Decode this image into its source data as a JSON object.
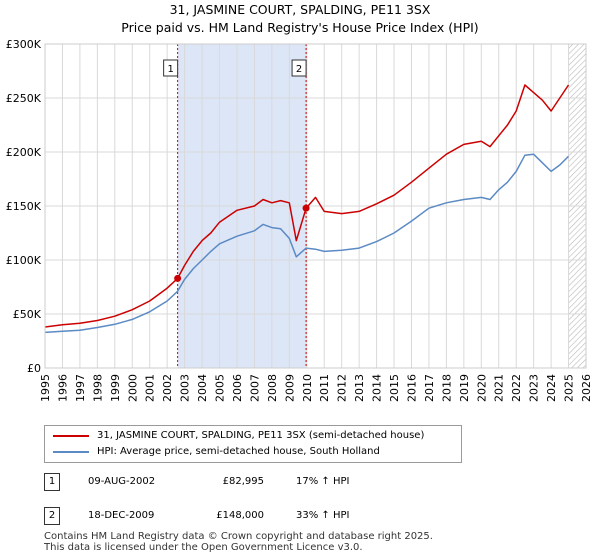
{
  "title": "31, JASMINE COURT, SPALDING, PE11 3SX",
  "subtitle": "Price paid vs. HM Land Registry's House Price Index (HPI)",
  "colors": {
    "property": "#cc0000",
    "hpi": "#5b8ac4",
    "shade": "#dde6f7",
    "hatch": "#b8b8b8"
  },
  "chart_data": {
    "type": "line",
    "title": "31, JASMINE COURT, SPALDING, PE11 3SX",
    "subtitle": "Price paid vs. HM Land Registry's House Price Index (HPI)",
    "xlabel": "",
    "ylabel": "",
    "xlim": [
      1995,
      2026
    ],
    "ylim": [
      0,
      300000
    ],
    "x_ticks": [
      "1995",
      "1996",
      "1997",
      "1998",
      "1999",
      "2000",
      "2001",
      "2002",
      "2003",
      "2004",
      "2005",
      "2006",
      "2007",
      "2008",
      "2009",
      "2010",
      "2011",
      "2012",
      "2013",
      "2014",
      "2015",
      "2016",
      "2017",
      "2018",
      "2019",
      "2020",
      "2021",
      "2022",
      "2023",
      "2024",
      "2025",
      "2026"
    ],
    "y_ticks": [
      {
        "value": 0,
        "label": "£0"
      },
      {
        "value": 50000,
        "label": "£50K"
      },
      {
        "value": 100000,
        "label": "£100K"
      },
      {
        "value": 150000,
        "label": "£150K"
      },
      {
        "value": 200000,
        "label": "£200K"
      },
      {
        "value": 250000,
        "label": "£250K"
      },
      {
        "value": 300000,
        "label": "£300K"
      }
    ],
    "grid": true,
    "shaded_period": {
      "from": 2002.6,
      "to": 2009.96
    },
    "future_hatch_from": 2025.0,
    "series": [
      {
        "name": "31, JASMINE COURT, SPALDING, PE11 3SX (semi-detached house)",
        "color": "#cc0000",
        "x": [
          1995.0,
          1996.0,
          1997.0,
          1998.0,
          1999.0,
          2000.0,
          2001.0,
          2001.5,
          2002.0,
          2002.6,
          2003.0,
          2003.5,
          2004.0,
          2004.5,
          2005.0,
          2006.0,
          2007.0,
          2007.5,
          2008.0,
          2008.5,
          2009.0,
          2009.4,
          2009.96,
          2010.5,
          2011.0,
          2012.0,
          2013.0,
          2014.0,
          2015.0,
          2016.0,
          2017.0,
          2018.0,
          2019.0,
          2020.0,
          2020.5,
          2021.0,
          2021.5,
          2022.0,
          2022.5,
          2023.0,
          2023.5,
          2024.0,
          2024.5,
          2025.0
        ],
        "values": [
          38000,
          40000,
          41500,
          44000,
          48000,
          54000,
          62000,
          68000,
          74000,
          82995,
          95000,
          108000,
          118000,
          125000,
          135000,
          146000,
          150000,
          156000,
          153000,
          155000,
          153000,
          118000,
          148000,
          158000,
          145000,
          143000,
          145000,
          152000,
          160000,
          172000,
          185000,
          198000,
          207000,
          210000,
          205000,
          215000,
          225000,
          238000,
          262000,
          255000,
          248000,
          238000,
          250000,
          262000
        ]
      },
      {
        "name": "HPI: Average price, semi-detached house, South Holland",
        "color": "#5b8ac4",
        "x": [
          1995.0,
          1996.0,
          1997.0,
          1998.0,
          1999.0,
          2000.0,
          2001.0,
          2001.5,
          2002.0,
          2002.6,
          2003.0,
          2003.5,
          2004.0,
          2004.5,
          2005.0,
          2006.0,
          2007.0,
          2007.5,
          2008.0,
          2008.5,
          2009.0,
          2009.4,
          2009.96,
          2010.5,
          2011.0,
          2012.0,
          2013.0,
          2014.0,
          2015.0,
          2016.0,
          2017.0,
          2018.0,
          2019.0,
          2020.0,
          2020.5,
          2021.0,
          2021.5,
          2022.0,
          2022.5,
          2023.0,
          2023.5,
          2024.0,
          2024.5,
          2025.0
        ],
        "values": [
          33000,
          34000,
          35000,
          37500,
          40500,
          45000,
          52000,
          57000,
          62000,
          71000,
          82000,
          92000,
          100000,
          108000,
          115000,
          122000,
          127000,
          133000,
          130000,
          129000,
          120000,
          103000,
          111000,
          110000,
          108000,
          109000,
          111000,
          117000,
          125000,
          136000,
          148000,
          153000,
          156000,
          158000,
          156000,
          165000,
          172000,
          182000,
          197000,
          198000,
          190000,
          182000,
          188000,
          196000
        ]
      }
    ],
    "markers": [
      {
        "label": "1",
        "x": 2002.6,
        "value": 82995
      },
      {
        "label": "2",
        "x": 2009.96,
        "value": 148000
      }
    ],
    "legend": "bottom"
  },
  "legend": {
    "property_label": "31, JASMINE COURT, SPALDING, PE11 3SX (semi-detached house)",
    "hpi_label": "HPI: Average price, semi-detached house, South Holland"
  },
  "transactions": [
    {
      "num": "1",
      "date": "09-AUG-2002",
      "price": "£82,995",
      "hpi": "17% ↑ HPI"
    },
    {
      "num": "2",
      "date": "18-DEC-2009",
      "price": "£148,000",
      "hpi": "33% ↑ HPI"
    }
  ],
  "footer": {
    "line1": "Contains HM Land Registry data © Crown copyright and database right 2025.",
    "line2": "This data is licensed under the Open Government Licence v3.0."
  }
}
